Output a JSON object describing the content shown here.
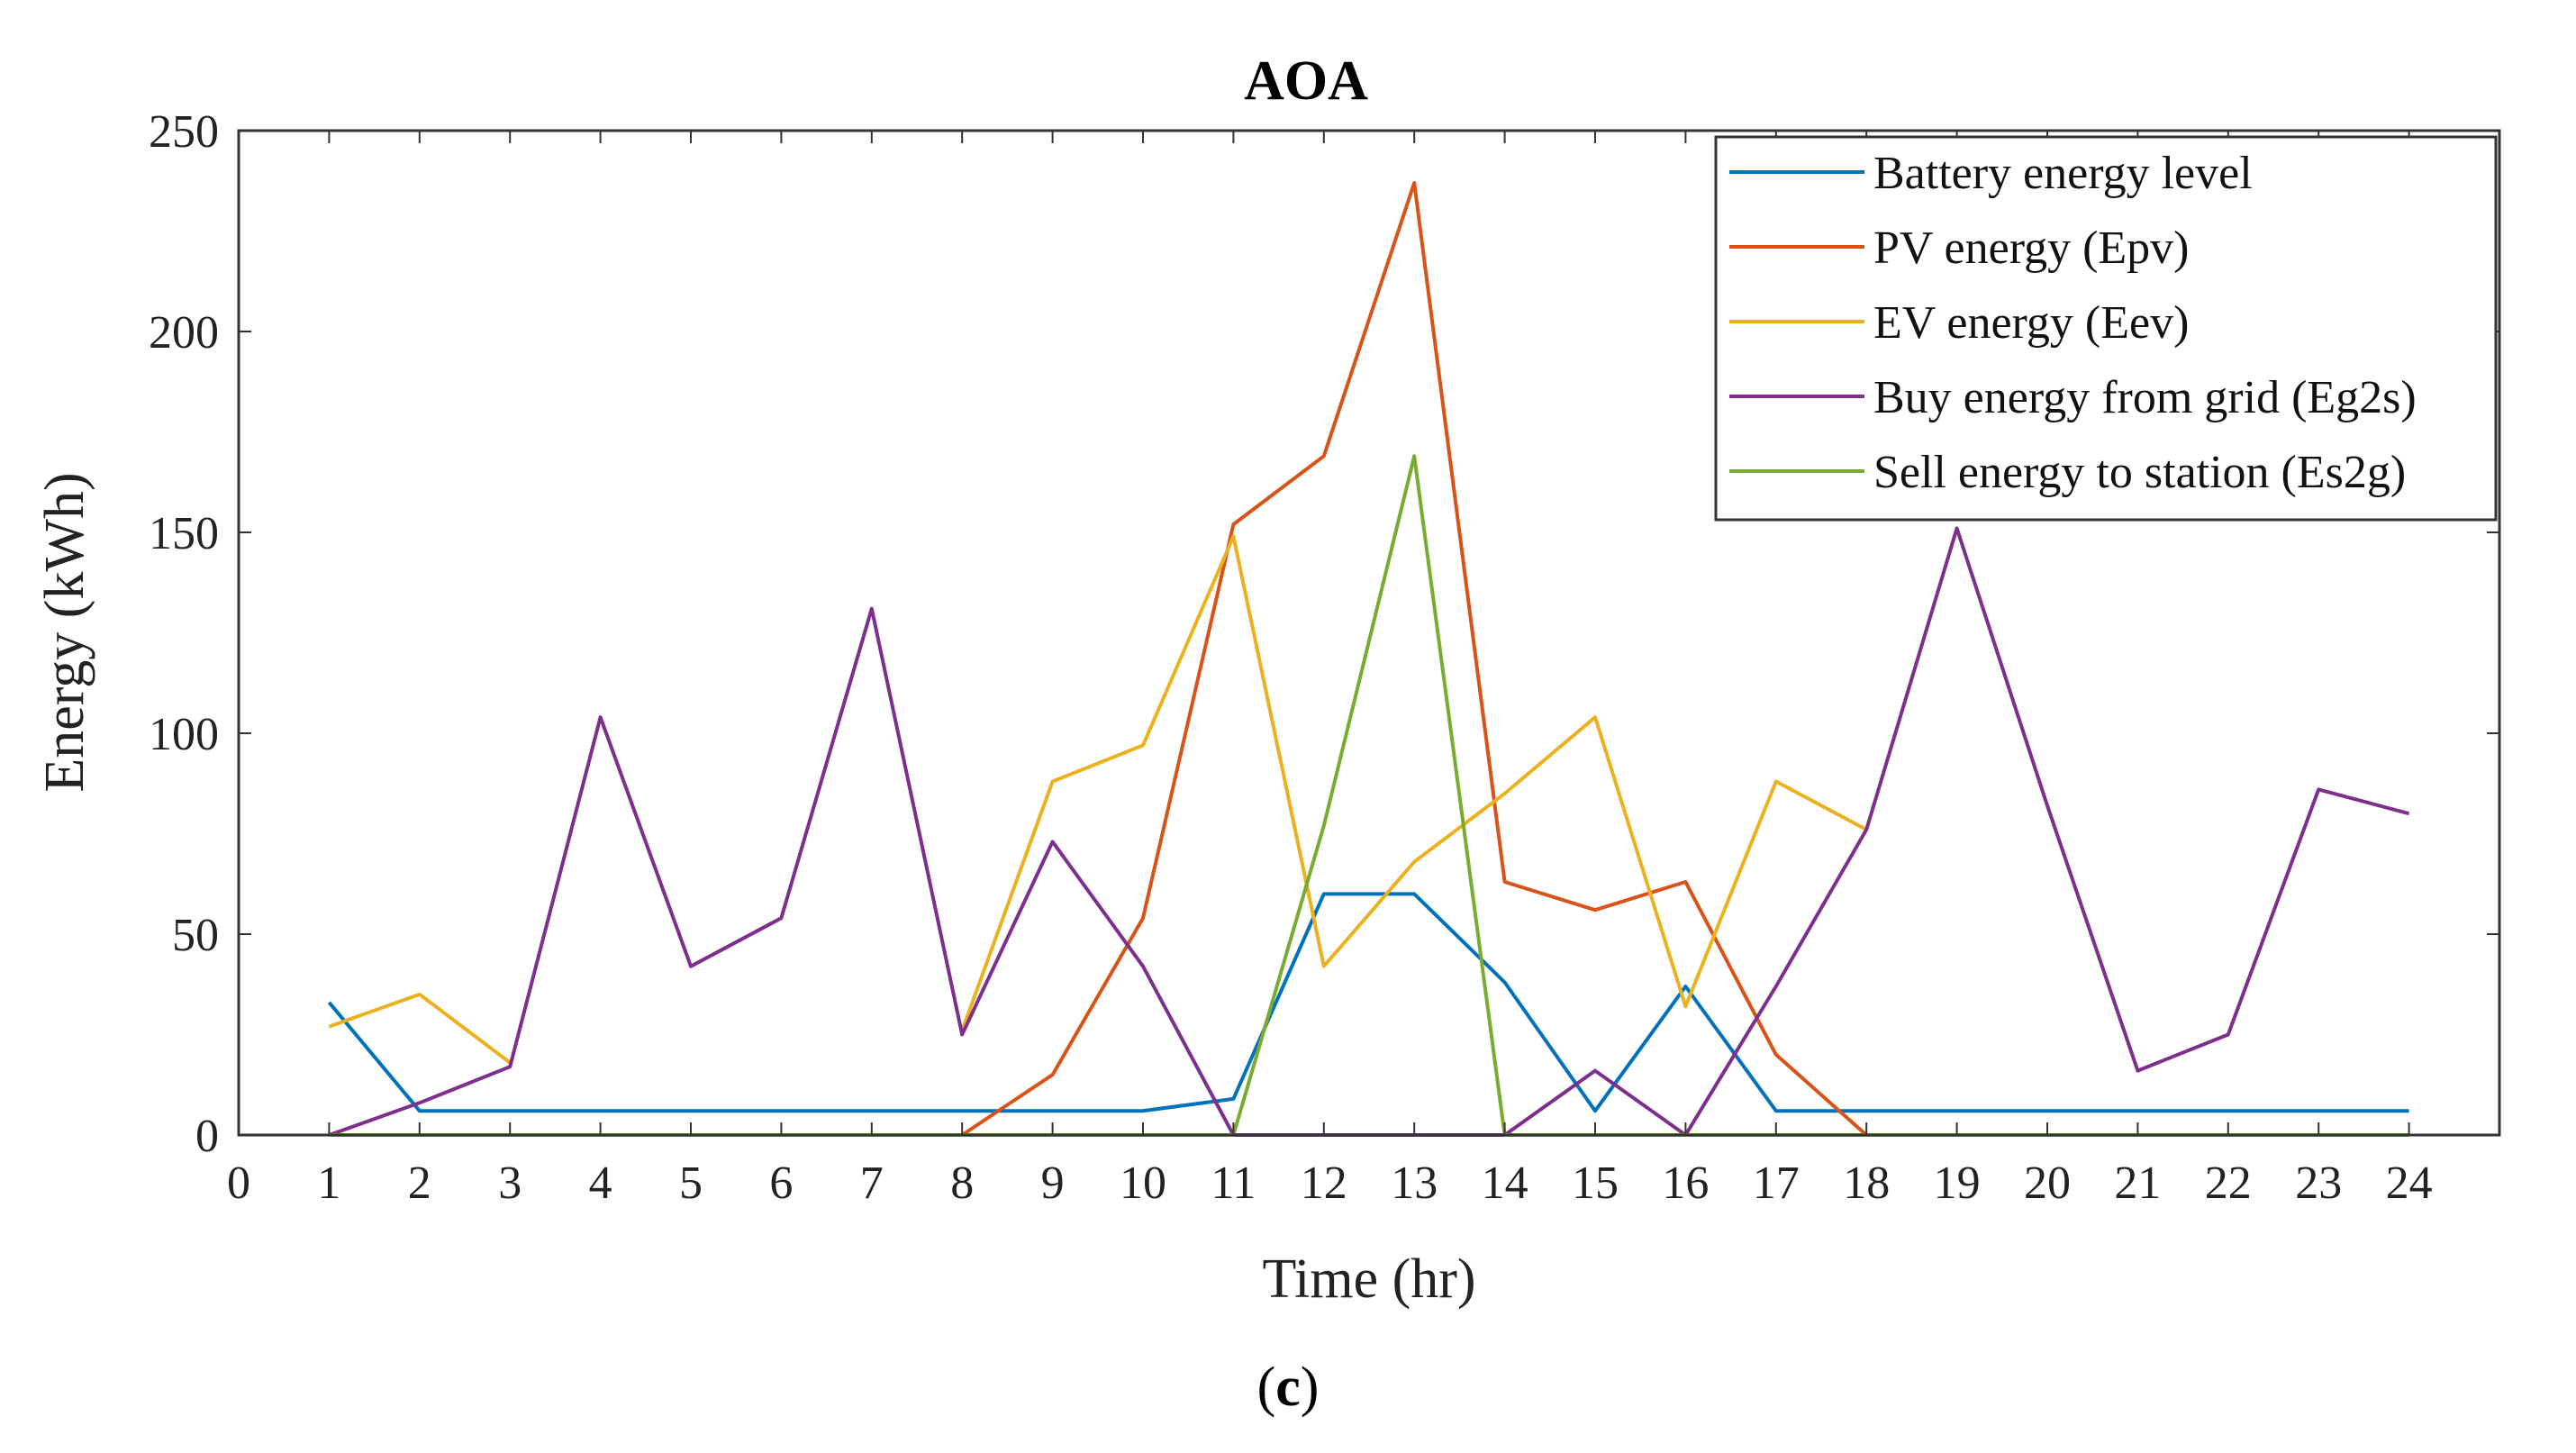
{
  "chart_data": {
    "type": "line",
    "title": "AOA",
    "xlabel": "Time (hr)",
    "ylabel": "Energy (kWh)",
    "xlim": [
      0,
      25
    ],
    "ylim": [
      0,
      250
    ],
    "xticks": [
      "0",
      "1",
      "2",
      "3",
      "4",
      "5",
      "6",
      "7",
      "8",
      "9",
      "10",
      "11",
      "12",
      "13",
      "14",
      "15",
      "16",
      "17",
      "18",
      "19",
      "20",
      "21",
      "22",
      "23",
      "24"
    ],
    "yticks": [
      "0",
      "50",
      "100",
      "150",
      "200",
      "250"
    ],
    "legend_position": "top-right",
    "series": [
      {
        "name": "Battery energy level",
        "color": "#0072BD",
        "x": [
          1,
          2,
          3,
          4,
          5,
          6,
          7,
          8,
          9,
          10,
          11,
          12,
          13,
          14,
          15,
          16,
          17,
          18,
          19,
          20,
          21,
          22,
          23,
          24
        ],
        "values": [
          33,
          6,
          6,
          6,
          6,
          6,
          6,
          6,
          6,
          6,
          9,
          60,
          60,
          38,
          6,
          37,
          6,
          6,
          6,
          6,
          6,
          6,
          6,
          6
        ]
      },
      {
        "name": "PV energy (Epv)",
        "color": "#D95319",
        "x": [
          8,
          9,
          10,
          11,
          12,
          13,
          14,
          15,
          16,
          17,
          18
        ],
        "values": [
          0,
          15,
          54,
          152,
          169,
          237,
          63,
          56,
          63,
          20,
          0
        ]
      },
      {
        "name": "EV energy (Eev)",
        "color": "#EDB120",
        "x": [
          1,
          2,
          3,
          4,
          5,
          6,
          7,
          8,
          9,
          10,
          11,
          12,
          13,
          14,
          15,
          16,
          17,
          18
        ],
        "values": [
          27,
          35,
          18,
          null,
          null,
          null,
          null,
          26,
          88,
          97,
          149,
          42,
          68,
          85,
          104,
          32,
          88,
          76
        ]
      },
      {
        "name": "Buy energy from grid (Eg2s)",
        "color": "#7E2F8E",
        "x": [
          1,
          2,
          3,
          4,
          5,
          6,
          7,
          8,
          9,
          10,
          11,
          12,
          13,
          14,
          15,
          16,
          17,
          18,
          19,
          20,
          21,
          22,
          23,
          24
        ],
        "values": [
          0,
          8,
          17,
          104,
          42,
          54,
          131,
          25,
          73,
          42,
          0,
          0,
          0,
          0,
          16,
          0,
          37,
          76,
          151,
          82,
          16,
          25,
          86,
          80
        ]
      },
      {
        "name": "Sell energy to station (Es2g)",
        "color": "#77AC30",
        "x": [
          1,
          2,
          3,
          4,
          5,
          6,
          7,
          8,
          9,
          10,
          11,
          12,
          13,
          14,
          15,
          16,
          17,
          18,
          19,
          20,
          21,
          22,
          23,
          24
        ],
        "values": [
          0,
          0,
          0,
          0,
          0,
          0,
          0,
          0,
          0,
          0,
          0,
          77,
          169,
          0,
          0,
          0,
          0,
          0,
          0,
          0,
          0,
          0,
          0,
          0
        ]
      }
    ],
    "caption": "(c)",
    "caption_bold": "c"
  }
}
